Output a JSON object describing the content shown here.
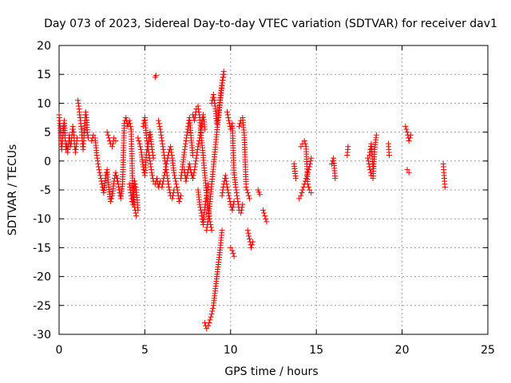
{
  "chart_data": {
    "type": "scatter",
    "title": "Day 073 of 2023, Sidereal Day-to-day VTEC variation (SDTVAR) for receiver dav1",
    "xlabel": "GPS time / hours",
    "ylabel": "SDTVAR / TECUs",
    "xlim": [
      0,
      25
    ],
    "ylim": [
      -30,
      20
    ],
    "x_ticks": [
      0,
      5,
      10,
      15,
      20,
      25
    ],
    "y_ticks": [
      -30,
      -25,
      -20,
      -15,
      -10,
      -5,
      0,
      5,
      10,
      15,
      20
    ],
    "grid": true,
    "marker": "+",
    "marker_color": "#ff0000",
    "series": [
      {
        "name": "SDTVAR",
        "tracks": [
          {
            "x": [
              0.0,
              0.05,
              0.1,
              0.15,
              0.2,
              0.25,
              0.3,
              0.35,
              0.4,
              0.45,
              0.5,
              0.55,
              0.6,
              0.65
            ],
            "y": [
              8.0,
              6.5,
              4.0,
              2.0,
              3.5,
              5.5,
              7.0,
              4.0,
              2.0,
              3.0,
              1.5,
              3.0,
              4.5,
              2.5
            ]
          },
          {
            "x": [
              0.7,
              0.75,
              0.8,
              0.85,
              0.9,
              0.95,
              1.0,
              1.05
            ],
            "y": [
              3.0,
              4.5,
              6.0,
              5.0,
              3.0,
              1.5,
              2.5,
              4.0
            ]
          },
          {
            "x": [
              1.1,
              1.15,
              1.2,
              1.25,
              1.3,
              1.35,
              1.4,
              1.45,
              1.5,
              1.55,
              1.6,
              1.65,
              1.7
            ],
            "y": [
              10.5,
              9.5,
              8.0,
              7.0,
              5.5,
              3.5,
              2.0,
              4.0,
              6.5,
              8.5,
              7.5,
              5.0,
              4.0
            ]
          },
          {
            "x": [
              1.9,
              2.0,
              2.1,
              2.2,
              2.3,
              2.4,
              2.5,
              2.6,
              2.7,
              2.8,
              2.9,
              3.0,
              3.1,
              3.2,
              3.3,
              3.4
            ],
            "y": [
              3.5,
              4.5,
              4.0,
              1.0,
              -1.0,
              -2.5,
              -4.0,
              -5.5,
              -3.0,
              -1.5,
              -4.5,
              -7.0,
              -6.0,
              -3.5,
              -2.0,
              -3.5
            ]
          },
          {
            "x": [
              2.8,
              2.9,
              3.0,
              3.1,
              3.2,
              3.3
            ],
            "y": [
              5.0,
              4.0,
              3.0,
              2.5,
              4.0,
              3.5
            ]
          },
          {
            "x": [
              3.4,
              3.5,
              3.6,
              3.7,
              3.8,
              3.9,
              4.0,
              4.1,
              4.2,
              4.3,
              4.4,
              4.5
            ],
            "y": [
              -3.0,
              -5.0,
              -6.5,
              -4.0,
              6.5,
              7.5,
              6.0,
              7.0,
              5.5,
              -5.5,
              -8.0,
              -9.5
            ]
          },
          {
            "x": [
              4.1,
              4.2,
              4.3,
              4.4,
              4.5,
              4.6
            ],
            "y": [
              -4.0,
              -6.0,
              -7.5,
              -3.5,
              -5.0,
              -8.5
            ]
          },
          {
            "x": [
              4.6,
              4.7,
              4.8,
              4.9,
              5.0,
              5.1,
              5.2,
              5.3,
              5.4,
              5.5
            ],
            "y": [
              4.0,
              3.0,
              1.5,
              -1.0,
              -2.5,
              1.5,
              3.0,
              5.0,
              2.5,
              0.5
            ]
          },
          {
            "x": [
              4.9,
              5.0,
              5.1,
              5.2,
              5.3,
              5.4,
              5.5,
              5.6,
              5.7,
              5.8,
              5.9
            ],
            "y": [
              6.0,
              7.5,
              4.0,
              2.0,
              0.0,
              -2.0,
              -3.5,
              -4.0,
              -3.0,
              -4.5,
              -3.5
            ]
          },
          {
            "x": [
              5.6,
              5.65
            ],
            "y": [
              14.5,
              14.8
            ]
          },
          {
            "x": [
              5.8,
              5.9,
              6.0,
              6.1,
              6.2,
              6.3,
              6.4,
              6.5,
              6.6,
              6.7
            ],
            "y": [
              7.0,
              5.5,
              3.5,
              1.5,
              -0.5,
              -2.5,
              -4.5,
              -6.0,
              -6.5,
              -5.0
            ]
          },
          {
            "x": [
              6.0,
              6.1,
              6.2,
              6.3,
              6.4,
              6.5,
              6.6,
              6.7,
              6.8,
              6.9,
              7.0,
              7.1
            ],
            "y": [
              -4.5,
              -3.0,
              -1.5,
              0.0,
              1.5,
              2.5,
              0.5,
              -2.0,
              -3.5,
              -5.0,
              -7.0,
              -6.0
            ]
          },
          {
            "x": [
              7.1,
              7.2,
              7.3,
              7.4,
              7.5,
              7.6,
              7.7,
              7.8
            ],
            "y": [
              -3.0,
              -1.0,
              1.5,
              3.5,
              5.5,
              7.5,
              4.0,
              1.0
            ]
          },
          {
            "x": [
              7.3,
              7.4,
              7.5,
              7.6,
              7.7,
              7.8,
              7.9,
              8.0,
              8.1,
              8.2,
              8.3,
              8.4,
              8.5
            ],
            "y": [
              -1.5,
              -3.5,
              -2.0,
              -0.5,
              -2.0,
              -3.0,
              -1.5,
              0.5,
              2.5,
              4.0,
              6.0,
              8.0,
              5.5
            ]
          },
          {
            "x": [
              7.8,
              7.9,
              8.0,
              8.1,
              8.2,
              8.3,
              8.4,
              8.5,
              8.6,
              8.7,
              8.8,
              8.9
            ],
            "y": [
              8.0,
              7.0,
              9.0,
              9.5,
              7.5,
              4.0,
              1.0,
              -2.5,
              -5.5,
              -8.5,
              -10.5,
              -12.0
            ]
          },
          {
            "x": [
              8.1,
              8.2,
              8.3,
              8.4,
              8.5,
              8.6,
              8.7
            ],
            "y": [
              -5.0,
              -7.5,
              -9.0,
              -11.0,
              -8.0,
              -6.0,
              -4.0
            ]
          },
          {
            "x": [
              8.6,
              8.7,
              8.8,
              8.9,
              9.0,
              9.1,
              9.2,
              9.3,
              9.4,
              9.5,
              9.6
            ],
            "y": [
              -12.0,
              -10.0,
              -7.0,
              -4.0,
              -1.0,
              2.0,
              5.0,
              8.0,
              11.0,
              13.5,
              15.5
            ]
          },
          {
            "x": [
              8.9,
              9.0,
              9.1,
              9.2,
              9.3,
              9.4,
              9.5,
              9.6
            ],
            "y": [
              10.0,
              11.5,
              9.5,
              6.5,
              7.5,
              10.5,
              13.0,
              15.0
            ]
          },
          {
            "x": [
              8.5,
              8.6,
              8.7,
              8.8,
              8.9,
              9.0,
              9.1,
              9.2,
              9.3,
              9.4,
              9.5
            ],
            "y": [
              -28.0,
              -29.0,
              -28.5,
              -27.5,
              -26.5,
              -25.0,
              -22.5,
              -20.0,
              -17.5,
              -15.0,
              -12.0
            ]
          },
          {
            "x": [
              9.5,
              9.6,
              9.7,
              9.8,
              9.9,
              10.0,
              10.1,
              10.2
            ],
            "y": [
              -6.0,
              -4.0,
              -2.5,
              -4.5,
              -6.0,
              -7.5,
              -8.5,
              -7.0
            ]
          },
          {
            "x": [
              9.8,
              9.9,
              10.0,
              10.1,
              10.2,
              10.3,
              10.4,
              10.5,
              10.6,
              10.7
            ],
            "y": [
              8.5,
              7.0,
              5.5,
              6.5,
              -2.0,
              -4.5,
              -6.5,
              -8.5,
              -9.0,
              -7.5
            ]
          },
          {
            "x": [
              10.5,
              10.6,
              10.7,
              10.8,
              10.9
            ],
            "y": [
              6.0,
              7.0,
              7.5,
              4.5,
              -4.0
            ]
          },
          {
            "x": [
              10.9,
              11.0,
              11.1
            ],
            "y": [
              -4.5,
              -5.5,
              -6.5
            ]
          },
          {
            "x": [
              11.0,
              11.1,
              11.2,
              11.3
            ],
            "y": [
              -12.0,
              -13.5,
              -15.0,
              -14.0
            ]
          },
          {
            "x": [
              10.0,
              10.1,
              10.2
            ],
            "y": [
              -15.0,
              -15.5,
              -16.5
            ]
          },
          {
            "x": [
              11.6,
              11.7
            ],
            "y": [
              -5.0,
              -5.8
            ]
          },
          {
            "x": [
              11.9,
              12.0,
              12.1
            ],
            "y": [
              -8.5,
              -9.5,
              -10.5
            ]
          },
          {
            "x": [
              13.7,
              13.8
            ],
            "y": [
              -0.5,
              -3.0
            ]
          },
          {
            "x": [
              14.0,
              14.1,
              14.2,
              14.3,
              14.4,
              14.5,
              14.6,
              14.7
            ],
            "y": [
              -6.5,
              -6.0,
              -5.0,
              -4.0,
              -3.0,
              -2.0,
              -1.0,
              0.5
            ]
          },
          {
            "x": [
              14.1,
              14.2,
              14.3,
              14.4,
              14.5,
              14.6,
              14.7
            ],
            "y": [
              2.5,
              3.0,
              3.5,
              2.5,
              -4.0,
              -5.0,
              -5.5
            ]
          },
          {
            "x": [
              15.9,
              16.0,
              16.1
            ],
            "y": [
              -0.5,
              0.5,
              -3.0
            ]
          },
          {
            "x": [
              16.8,
              16.85
            ],
            "y": [
              1.0,
              2.5
            ]
          },
          {
            "x": [
              18.0,
              18.1,
              18.2,
              18.3,
              18.4,
              18.5
            ],
            "y": [
              0.5,
              -1.0,
              -2.5,
              -3.0,
              2.0,
              4.5
            ]
          },
          {
            "x": [
              18.1,
              18.2,
              18.3
            ],
            "y": [
              1.0,
              3.0,
              -1.0
            ]
          },
          {
            "x": [
              19.2,
              19.25
            ],
            "y": [
              3.0,
              1.0
            ]
          },
          {
            "x": [
              20.2,
              20.3,
              20.4,
              20.5
            ],
            "y": [
              6.0,
              5.0,
              3.5,
              4.5
            ]
          },
          {
            "x": [
              20.3,
              20.4
            ],
            "y": [
              -1.5,
              -2.0
            ]
          },
          {
            "x": [
              22.4,
              22.45,
              22.5
            ],
            "y": [
              -0.5,
              -2.5,
              -4.5
            ]
          }
        ]
      }
    ]
  }
}
